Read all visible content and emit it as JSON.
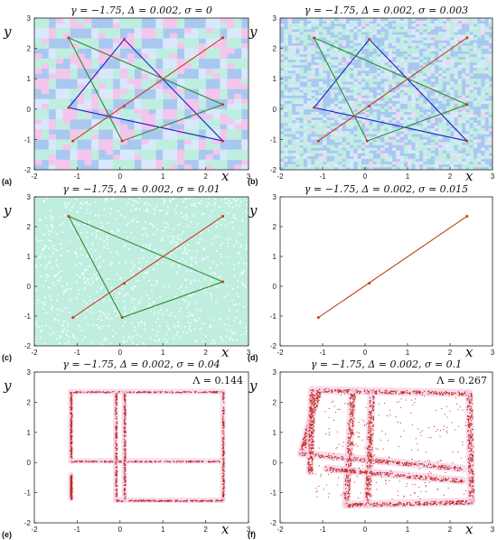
{
  "chart_data": [
    {
      "panel_label": "(a)",
      "title": "γ = −1.75, Δ = 0.002, σ = 0",
      "type": "scatter",
      "xlim": [
        -2,
        3
      ],
      "ylim": [
        -2,
        3
      ],
      "xticks": [
        "-2",
        "-1",
        "0",
        "1",
        "2",
        "3"
      ],
      "yticks": [
        "-2",
        "-1",
        "0",
        "1",
        "2",
        "3"
      ],
      "xlabel": "x",
      "ylabel": "y",
      "background": {
        "pattern": "basin",
        "colors": [
          "#a9c8f0",
          "#bfeee0",
          "#f4c6ec",
          "#d9e8fb"
        ]
      },
      "polygons": [
        {
          "color": "#1d1dc8",
          "points": [
            [
              -1.2,
              0.05
            ],
            [
              0.1,
              2.3
            ],
            [
              2.4,
              -1.05
            ]
          ]
        },
        {
          "color": "#2e8b2e",
          "points": [
            [
              -1.2,
              2.35
            ],
            [
              2.4,
              0.15
            ],
            [
              0.05,
              -1.05
            ]
          ]
        },
        {
          "color": "#c83c1c",
          "points": [
            [
              -1.1,
              -1.05
            ],
            [
              2.4,
              2.35
            ]
          ]
        }
      ],
      "orbit_points": [
        [
          -1.1,
          -1.05
        ],
        [
          0.1,
          0.1
        ],
        [
          2.4,
          2.35
        ],
        [
          -1.2,
          0.05
        ],
        [
          0.1,
          2.3
        ],
        [
          2.4,
          -1.05
        ],
        [
          -1.2,
          2.35
        ],
        [
          2.4,
          0.15
        ],
        [
          0.05,
          -1.05
        ]
      ]
    },
    {
      "panel_label": "(b)",
      "title": "γ = −1.75, Δ = 0.002, σ = 0.003",
      "type": "scatter",
      "xlim": [
        -2,
        3
      ],
      "ylim": [
        -2,
        3
      ],
      "xticks": [
        "-2",
        "-1",
        "0",
        "1",
        "2",
        "3"
      ],
      "yticks": [
        "-2",
        "-1",
        "0",
        "1",
        "2",
        "3"
      ],
      "xlabel": "x",
      "ylabel": "y",
      "background": {
        "pattern": "noisy-basin",
        "colors": [
          "#a9c8f0",
          "#bfeee0",
          "#d9e8fb",
          "#f7d3ee"
        ]
      },
      "polygons": [
        {
          "color": "#1d1dc8",
          "points": [
            [
              -1.2,
              0.05
            ],
            [
              0.1,
              2.3
            ],
            [
              2.4,
              -1.05
            ]
          ]
        },
        {
          "color": "#2e8b2e",
          "points": [
            [
              -1.2,
              2.35
            ],
            [
              2.4,
              0.15
            ],
            [
              0.05,
              -1.05
            ]
          ]
        },
        {
          "color": "#c83c1c",
          "points": [
            [
              -1.1,
              -1.05
            ],
            [
              2.4,
              2.35
            ]
          ]
        }
      ],
      "orbit_points": [
        [
          -1.1,
          -1.05
        ],
        [
          0.1,
          0.1
        ],
        [
          2.4,
          2.35
        ],
        [
          -1.2,
          0.05
        ],
        [
          0.1,
          2.3
        ],
        [
          2.4,
          -1.05
        ],
        [
          -1.2,
          2.35
        ],
        [
          2.4,
          0.15
        ],
        [
          0.05,
          -1.05
        ]
      ]
    },
    {
      "panel_label": "(c)",
      "title": "γ = −1.75, Δ = 0.002, σ = 0.01",
      "type": "scatter",
      "xlim": [
        -2,
        3
      ],
      "ylim": [
        -2,
        3
      ],
      "xticks": [
        "-2",
        "-1",
        "0",
        "1",
        "2",
        "3"
      ],
      "yticks": [
        "-2",
        "-1",
        "0",
        "1",
        "2",
        "3"
      ],
      "xlabel": "x",
      "ylabel": "y",
      "background": {
        "pattern": "speckle",
        "colors": [
          "#bfeee0",
          "#ffffff",
          "#d4f4ea"
        ]
      },
      "polygons": [
        {
          "color": "#2e8b2e",
          "points": [
            [
              -1.2,
              2.35
            ],
            [
              2.4,
              0.15
            ],
            [
              0.05,
              -1.05
            ]
          ]
        },
        {
          "color": "#c83c1c",
          "points": [
            [
              -1.1,
              -1.05
            ],
            [
              2.4,
              2.35
            ]
          ]
        }
      ],
      "orbit_points": [
        [
          -1.1,
          -1.05
        ],
        [
          0.1,
          0.1
        ],
        [
          2.4,
          2.35
        ],
        [
          -1.2,
          2.35
        ],
        [
          2.4,
          0.15
        ],
        [
          0.05,
          -1.05
        ]
      ]
    },
    {
      "panel_label": "(d)",
      "title": "γ = −1.75, Δ = 0.002, σ = 0.015",
      "type": "scatter",
      "xlim": [
        -2,
        3
      ],
      "ylim": [
        -2,
        3
      ],
      "xticks": [
        "-2",
        "-1",
        "0",
        "1",
        "2",
        "3"
      ],
      "yticks": [
        "-2",
        "-1",
        "0",
        "1",
        "2",
        "3"
      ],
      "xlabel": "x",
      "ylabel": "y",
      "background": {
        "pattern": "none",
        "colors": [
          "#ffffff"
        ]
      },
      "polygons": [
        {
          "color": "#c83c1c",
          "points": [
            [
              -1.1,
              -1.05
            ],
            [
              2.4,
              2.35
            ]
          ]
        }
      ],
      "orbit_points": [
        [
          -1.1,
          -1.05
        ],
        [
          0.1,
          0.1
        ],
        [
          2.4,
          2.35
        ]
      ]
    },
    {
      "panel_label": "(e)",
      "title": "γ = −1.75, Δ = 0.002, σ = 0.04",
      "annotation": "Λ = 0.144",
      "type": "scatter",
      "xlim": [
        -2,
        3
      ],
      "ylim": [
        -2,
        3
      ],
      "xticks": [
        "-2",
        "-1",
        "0",
        "1",
        "2",
        "3"
      ],
      "yticks": [
        "-2",
        "-1",
        "0",
        "1",
        "2",
        "3"
      ],
      "xlabel": "x",
      "ylabel": "y",
      "background": {
        "pattern": "none",
        "colors": [
          "#ffffff"
        ]
      },
      "attractor": {
        "style": "rectangles",
        "segments": [
          [
            [
              -1.15,
              2.35
            ],
            [
              2.4,
              2.35
            ]
          ],
          [
            [
              -1.15,
              2.35
            ],
            [
              -1.15,
              0.05
            ]
          ],
          [
            [
              -1.15,
              0.05
            ],
            [
              2.4,
              0.05
            ]
          ],
          [
            [
              2.4,
              2.35
            ],
            [
              2.4,
              -1.25
            ]
          ],
          [
            [
              -0.1,
              2.3
            ],
            [
              -0.1,
              -1.25
            ]
          ],
          [
            [
              -0.1,
              -1.25
            ],
            [
              2.4,
              -1.25
            ]
          ],
          [
            [
              0.1,
              2.3
            ],
            [
              0.1,
              -1.2
            ]
          ],
          [
            [
              -1.15,
              -1.2
            ],
            [
              -1.15,
              -0.4
            ]
          ]
        ]
      }
    },
    {
      "panel_label": "(f)",
      "title": "γ = −1.75, Δ = 0.002, σ = 0.1",
      "annotation": "Λ = 0.267",
      "type": "scatter",
      "xlim": [
        -2,
        3
      ],
      "ylim": [
        -2,
        3
      ],
      "xticks": [
        "-2",
        "-1",
        "0",
        "1",
        "2",
        "3"
      ],
      "yticks": [
        "-2",
        "-1",
        "0",
        "1",
        "2",
        "3"
      ],
      "xlabel": "x",
      "ylabel": "y",
      "background": {
        "pattern": "none",
        "colors": [
          "#ffffff"
        ]
      },
      "attractor": {
        "style": "cloud",
        "segments": [
          [
            [
              -1.1,
              2.4
            ],
            [
              2.45,
              2.3
            ]
          ],
          [
            [
              -1.1,
              2.4
            ],
            [
              -1.5,
              0.3
            ]
          ],
          [
            [
              -1.5,
              0.3
            ],
            [
              2.3,
              -0.2
            ]
          ],
          [
            [
              2.45,
              2.3
            ],
            [
              2.5,
              -1.3
            ]
          ],
          [
            [
              -0.3,
              2.3
            ],
            [
              -0.45,
              -1.4
            ]
          ],
          [
            [
              -0.45,
              -1.4
            ],
            [
              2.5,
              -1.3
            ]
          ],
          [
            [
              0.15,
              2.2
            ],
            [
              0.05,
              -1.4
            ]
          ],
          [
            [
              -1.25,
              2.4
            ],
            [
              -1.3,
              -0.3
            ]
          ],
          [
            [
              -0.9,
              -0.2
            ],
            [
              2.3,
              -0.6
            ]
          ]
        ]
      }
    }
  ]
}
